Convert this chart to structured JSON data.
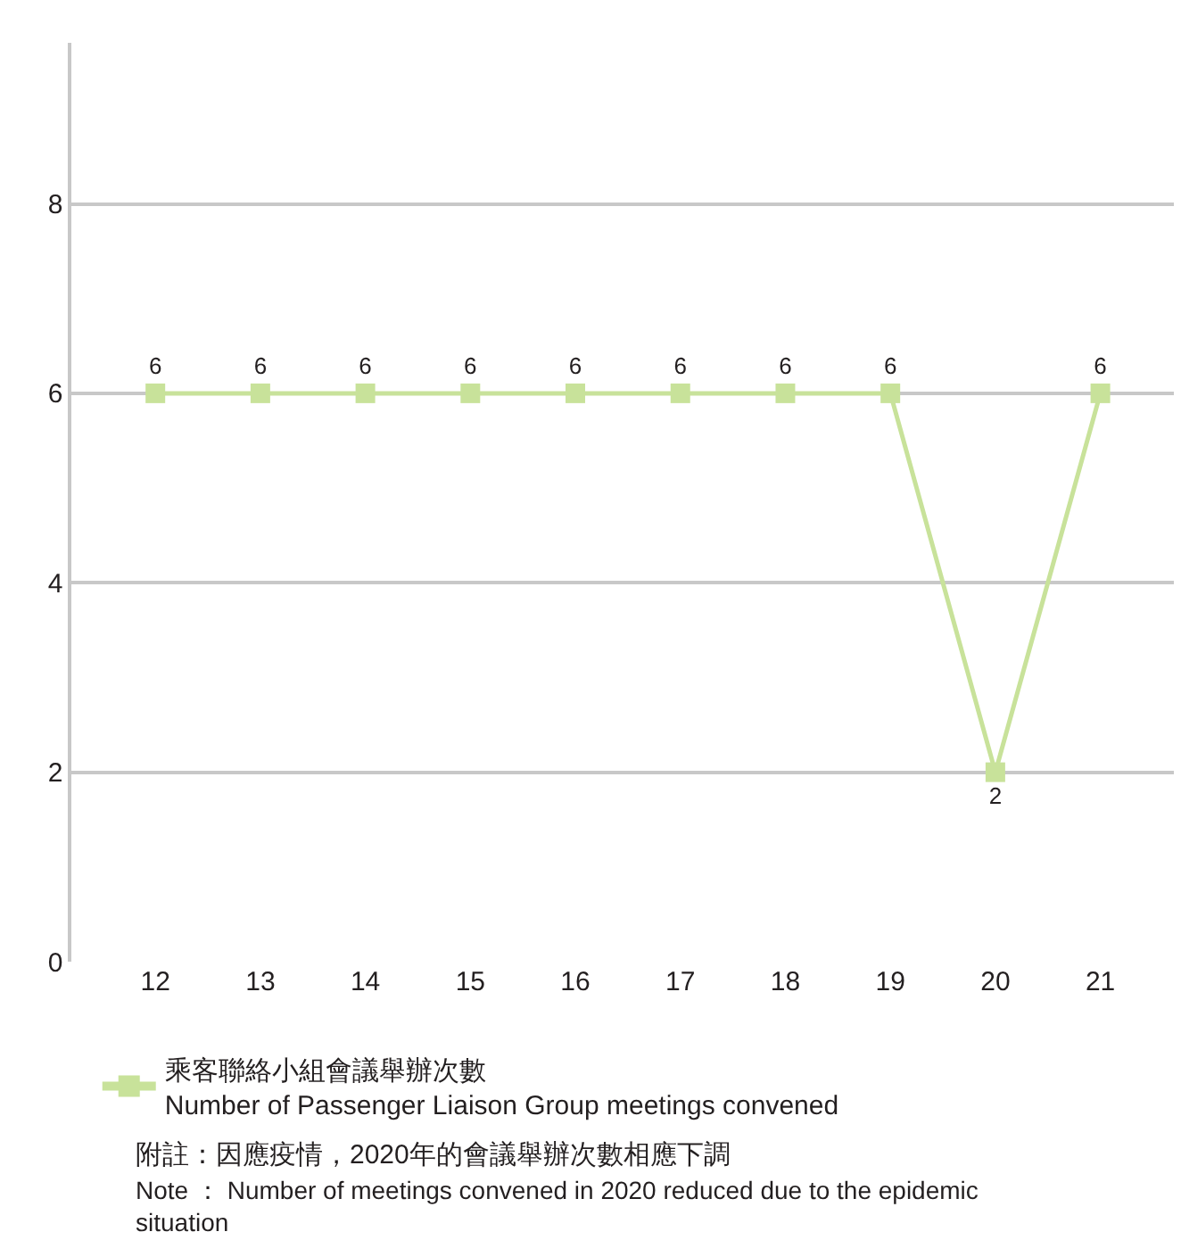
{
  "chart_data": {
    "type": "line",
    "categories": [
      "12",
      "13",
      "14",
      "15",
      "16",
      "17",
      "18",
      "19",
      "20",
      "21"
    ],
    "series": [
      {
        "name": "乘客聯絡小組會議舉辦次數\nNumber of Passenger Liaison Group meetings convened",
        "color": "#c8e29a",
        "values": [
          6,
          6,
          6,
          6,
          6,
          6,
          6,
          6,
          2,
          6
        ]
      }
    ],
    "ylim": [
      0,
      9.7
    ],
    "yticks": [
      0,
      2,
      4,
      6,
      8
    ],
    "grid": "y",
    "legend": "bottom left",
    "marker": "square",
    "line_style": "solid",
    "data_labels": true,
    "annotations": [
      "附註：因應疫情，2020年的會議舉辦次數相應下調",
      "Note ： Number of meetings convened in 2020 reduced due to the epidemic situation"
    ]
  }
}
